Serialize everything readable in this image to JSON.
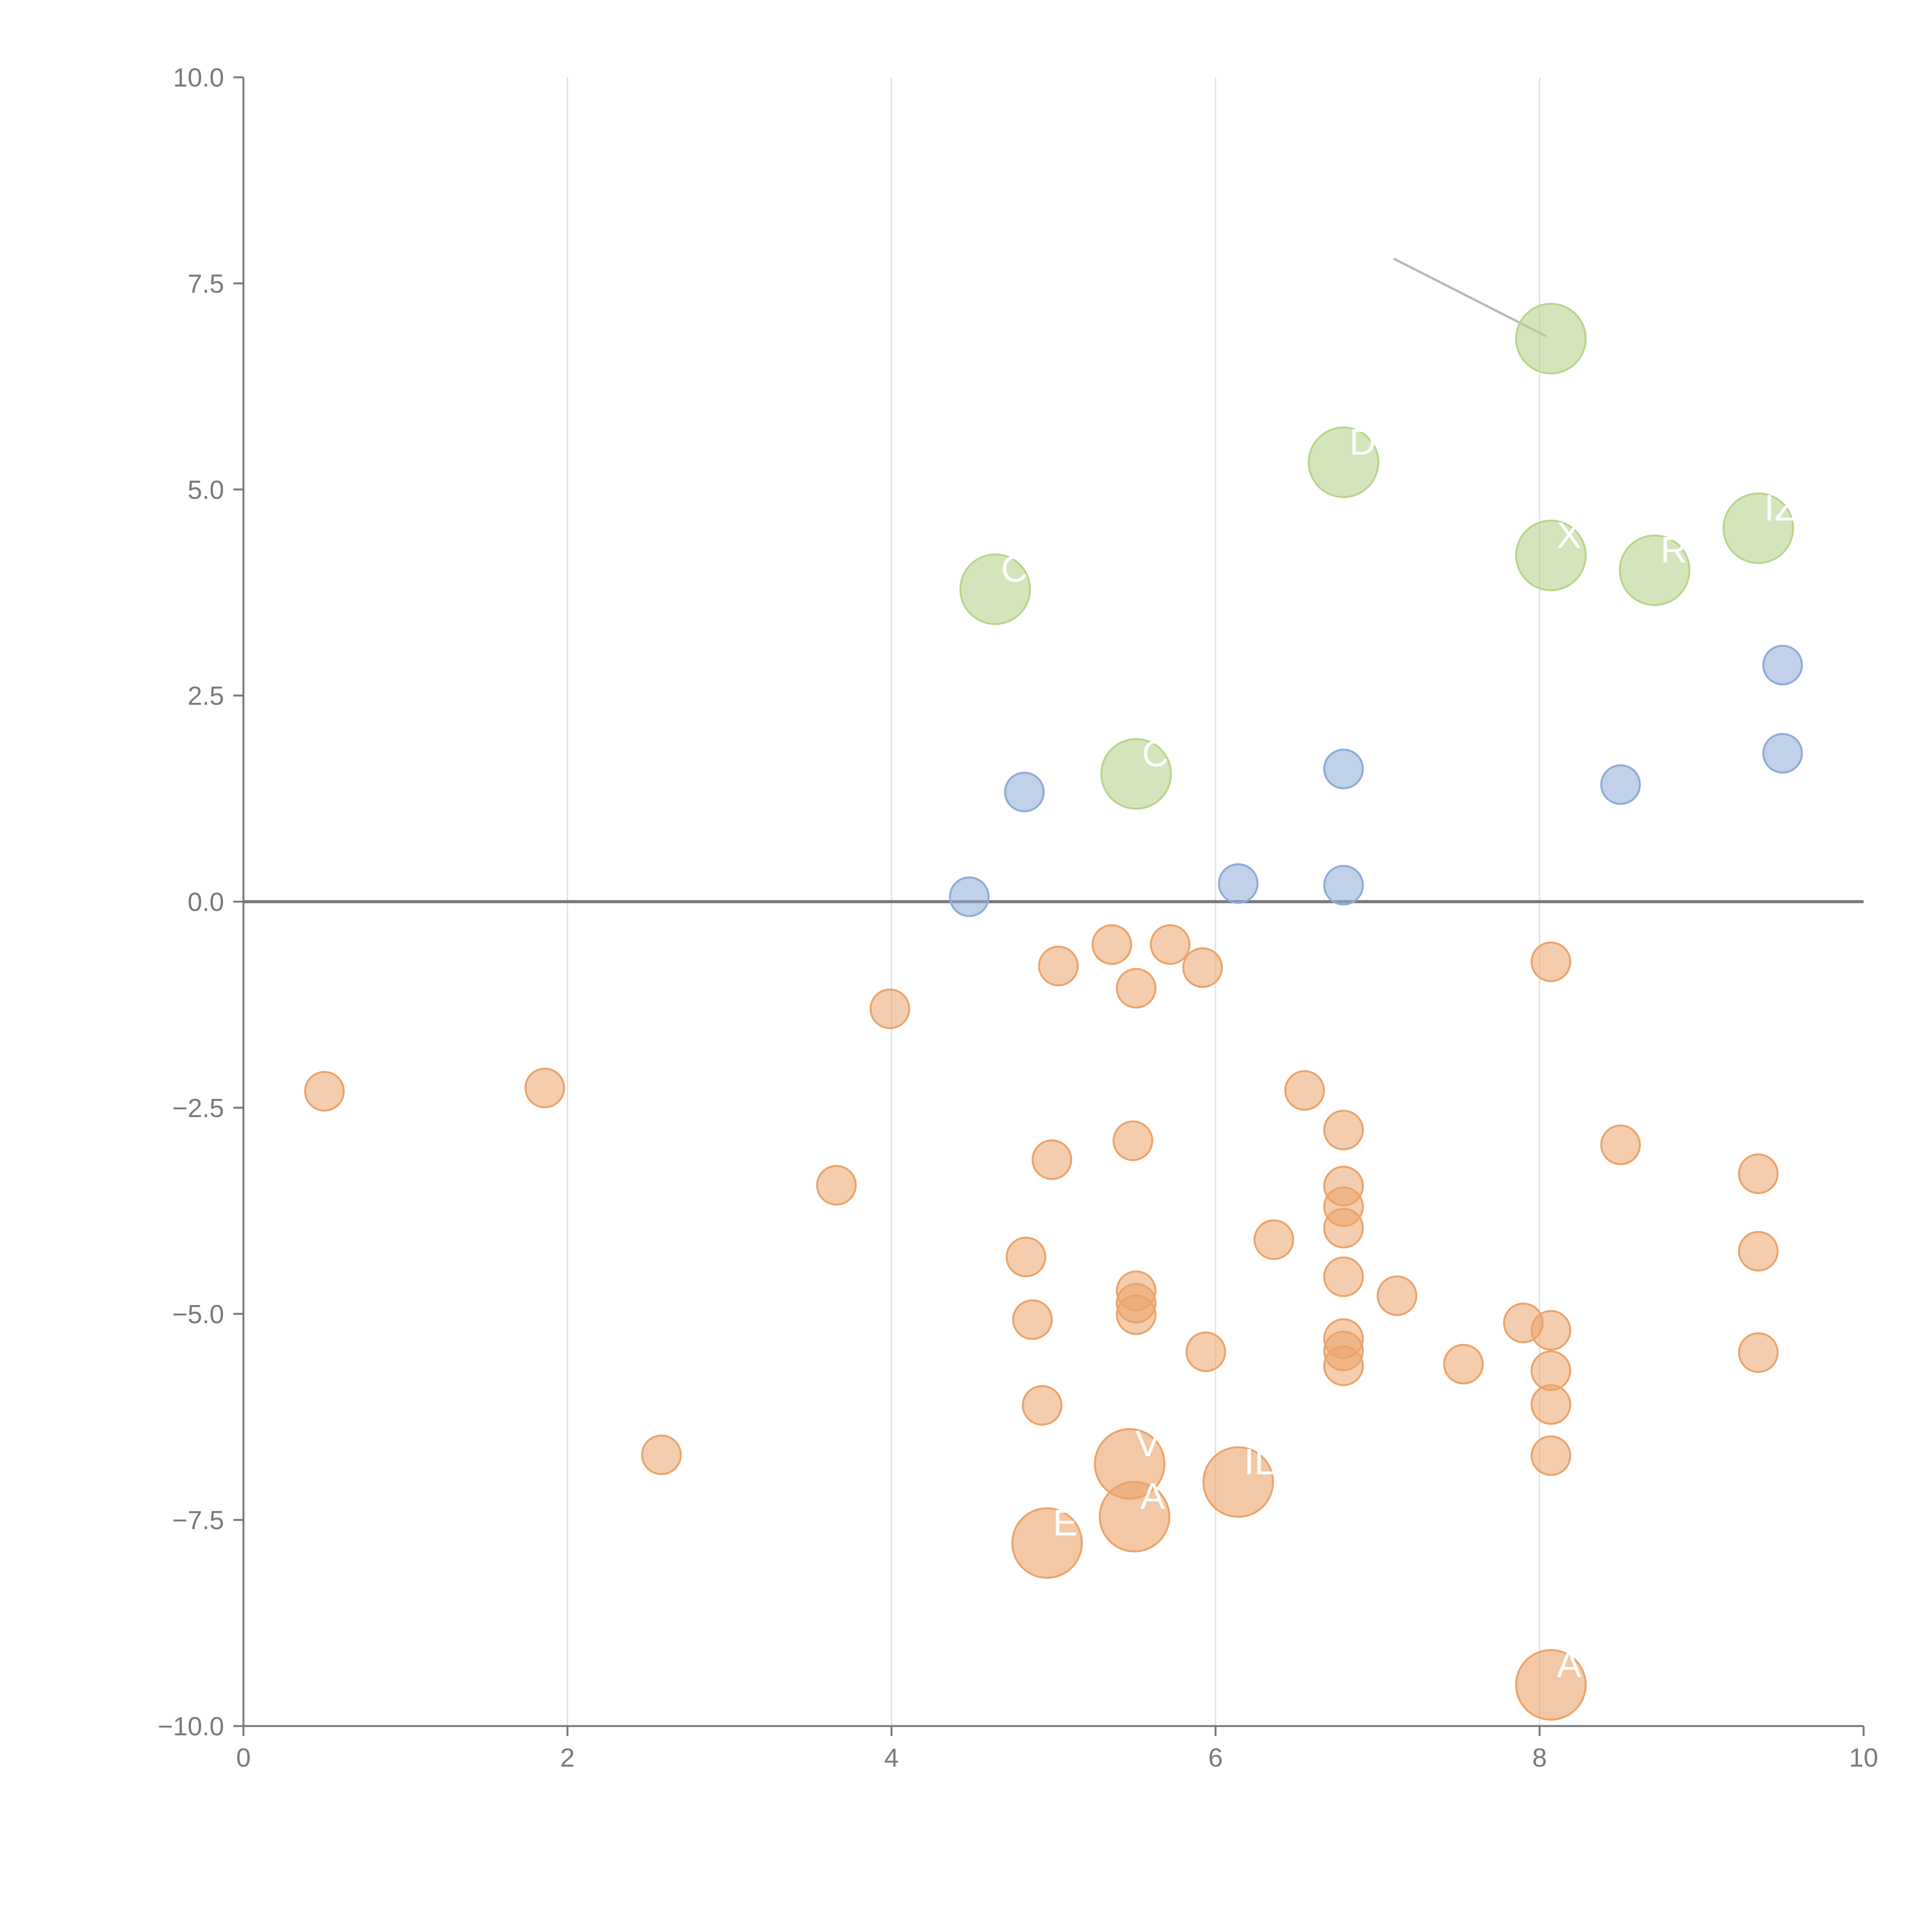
{
  "chart_data": {
    "type": "scatter",
    "title": "",
    "xlabel": "",
    "ylabel": "",
    "xlim": [
      0,
      10
    ],
    "ylim": [
      -10,
      10
    ],
    "grid": "vertical",
    "legend": "none",
    "x_ticks": [
      "0",
      "2",
      "4",
      "6",
      "8",
      "10"
    ],
    "y_ticks": [
      "10.0",
      "7.5",
      "5.0",
      "2.5",
      "0.0",
      "−2.5",
      "−5.0",
      "−7.5",
      "−10.0"
    ],
    "colors": {
      "green": "#b9d48e",
      "blue": "#8eabd8",
      "orange": "#eba46b",
      "axis": "#7a7a7a",
      "grid": "#dddddd",
      "leader": "#b8b8b8",
      "label": "#ffffff"
    },
    "series": [
      {
        "name": "green",
        "color": "#b9d48e",
        "size": "large",
        "points": [
          {
            "x": 8.07,
            "y": 6.83,
            "label": ""
          },
          {
            "x": 6.79,
            "y": 5.33,
            "label": "D"
          },
          {
            "x": 9.35,
            "y": 4.53,
            "label": "IZ"
          },
          {
            "x": 8.07,
            "y": 4.2,
            "label": "X"
          },
          {
            "x": 8.71,
            "y": 4.02,
            "label": "RV"
          },
          {
            "x": 4.64,
            "y": 3.79,
            "label": "C"
          },
          {
            "x": 5.51,
            "y": 1.55,
            "label": "C"
          }
        ]
      },
      {
        "name": "blue",
        "color": "#8eabd8",
        "size": "small",
        "points": [
          {
            "x": 9.5,
            "y": 2.87
          },
          {
            "x": 9.5,
            "y": 1.8
          },
          {
            "x": 8.5,
            "y": 1.42
          },
          {
            "x": 6.79,
            "y": 1.61
          },
          {
            "x": 4.82,
            "y": 1.33
          },
          {
            "x": 6.14,
            "y": 0.22
          },
          {
            "x": 6.79,
            "y": 0.2
          },
          {
            "x": 4.48,
            "y": 0.06
          }
        ]
      },
      {
        "name": "orange",
        "color": "#eba46b",
        "size": "small",
        "points": [
          {
            "x": 5.36,
            "y": -0.52
          },
          {
            "x": 5.72,
            "y": -0.52
          },
          {
            "x": 5.03,
            "y": -0.78
          },
          {
            "x": 5.92,
            "y": -0.8
          },
          {
            "x": 5.51,
            "y": -1.05
          },
          {
            "x": 8.07,
            "y": -0.73
          },
          {
            "x": 3.99,
            "y": -1.3
          },
          {
            "x": 0.5,
            "y": -2.3
          },
          {
            "x": 1.86,
            "y": -2.26
          },
          {
            "x": 6.55,
            "y": -2.29
          },
          {
            "x": 6.79,
            "y": -2.77
          },
          {
            "x": 5.49,
            "y": -2.9
          },
          {
            "x": 4.99,
            "y": -3.13
          },
          {
            "x": 3.66,
            "y": -3.44
          },
          {
            "x": 8.5,
            "y": -2.95
          },
          {
            "x": 9.35,
            "y": -3.3
          },
          {
            "x": 6.79,
            "y": -3.45
          },
          {
            "x": 6.79,
            "y": -3.7
          },
          {
            "x": 6.79,
            "y": -3.96
          },
          {
            "x": 6.36,
            "y": -4.1
          },
          {
            "x": 4.83,
            "y": -4.31
          },
          {
            "x": 9.35,
            "y": -4.24
          },
          {
            "x": 6.79,
            "y": -4.55
          },
          {
            "x": 5.51,
            "y": -4.72
          },
          {
            "x": 5.51,
            "y": -4.87
          },
          {
            "x": 7.12,
            "y": -4.78
          },
          {
            "x": 5.51,
            "y": -5.01
          },
          {
            "x": 4.87,
            "y": -5.07
          },
          {
            "x": 7.9,
            "y": -5.11
          },
          {
            "x": 8.07,
            "y": -5.2
          },
          {
            "x": 6.79,
            "y": -5.3
          },
          {
            "x": 6.79,
            "y": -5.45
          },
          {
            "x": 5.94,
            "y": -5.46
          },
          {
            "x": 9.35,
            "y": -5.47
          },
          {
            "x": 6.79,
            "y": -5.63
          },
          {
            "x": 7.53,
            "y": -5.61
          },
          {
            "x": 8.07,
            "y": -5.69
          },
          {
            "x": 4.93,
            "y": -6.11
          },
          {
            "x": 8.07,
            "y": -6.1
          },
          {
            "x": 2.58,
            "y": -6.71
          },
          {
            "x": 8.07,
            "y": -6.72
          }
        ]
      },
      {
        "name": "orange-large",
        "color": "#eba46b",
        "size": "large",
        "points": [
          {
            "x": 5.47,
            "y": -6.82,
            "label": "V"
          },
          {
            "x": 6.14,
            "y": -7.04,
            "label": "IL"
          },
          {
            "x": 5.5,
            "y": -7.46,
            "label": "A"
          },
          {
            "x": 4.96,
            "y": -7.78,
            "label": "E"
          },
          {
            "x": 8.07,
            "y": -9.5,
            "label": "A"
          }
        ]
      }
    ]
  }
}
